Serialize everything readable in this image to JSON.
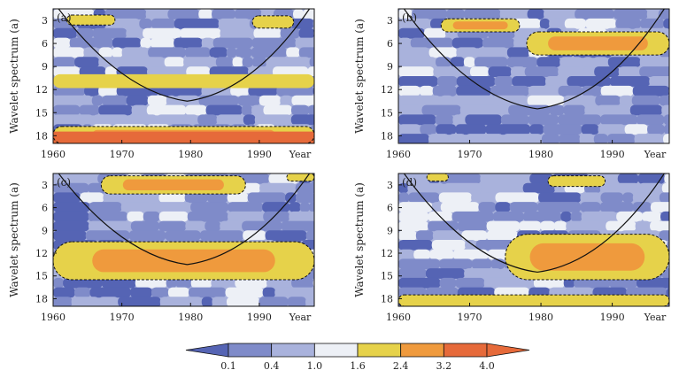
{
  "chart_data": {
    "type": "heatmap",
    "panels": [
      {
        "label": "(a)",
        "ylabel": "Wavelet spectrum (a)",
        "xticks": [
          "1960",
          "1970",
          "1980",
          "1990",
          "Year"
        ],
        "yticks": [
          "3",
          "6",
          "9",
          "12",
          "15",
          "18"
        ],
        "xlim": [
          1960,
          1998
        ],
        "ylim_period": [
          1.5,
          19
        ],
        "cone_min": [
          1979.5,
          13.5
        ],
        "high_regions": [
          {
            "x": [
              1962,
              1969
            ],
            "y": [
              2.3,
              3.6
            ],
            "level": 2.4,
            "significant": true
          },
          {
            "x": [
              1989,
              1995
            ],
            "y": [
              2.4,
              4.0
            ],
            "level": 2.4,
            "significant": true
          },
          {
            "x": [
              1960,
              1998
            ],
            "y": [
              16.8,
              19
            ],
            "level": 4.0,
            "significant": true
          },
          {
            "x": [
              1960,
              1998
            ],
            "y": [
              10.0,
              11.8
            ],
            "level": 2.4,
            "significant": false
          }
        ]
      },
      {
        "label": "(b)",
        "ylabel": "Wavelet spectrum (a)",
        "xticks": [
          "1960",
          "1970",
          "1980",
          "1990",
          "Year"
        ],
        "yticks": [
          "3",
          "6",
          "9",
          "12",
          "15",
          "18"
        ],
        "xlim": [
          1960,
          1998
        ],
        "ylim_period": [
          1.5,
          19
        ],
        "cone_min": [
          1979.5,
          14.5
        ],
        "high_regions": [
          {
            "x": [
              1966,
              1977
            ],
            "y": [
              2.8,
              4.5
            ],
            "level": 3.2,
            "significant": true
          },
          {
            "x": [
              1978,
              1998
            ],
            "y": [
              4.5,
              7.5
            ],
            "level": 3.2,
            "significant": true
          }
        ]
      },
      {
        "label": "(c)",
        "ylabel": "Wavelet spectrum (a)",
        "xticks": [
          "1960",
          "1970",
          "1980",
          "1990",
          "Year"
        ],
        "yticks": [
          "3",
          "6",
          "9",
          "12",
          "15",
          "18"
        ],
        "xlim": [
          1960,
          1998
        ],
        "ylim_period": [
          1.5,
          19
        ],
        "cone_min": [
          1979.5,
          13.5
        ],
        "high_regions": [
          {
            "x": [
              1967,
              1988
            ],
            "y": [
              1.8,
              4.2
            ],
            "level": 3.2,
            "significant": true
          },
          {
            "x": [
              1994,
              1998
            ],
            "y": [
              1.5,
              2.5
            ],
            "level": 2.4,
            "significant": true
          },
          {
            "x": [
              1960,
              1998
            ],
            "y": [
              10.5,
              15.5
            ],
            "level": 3.2,
            "significant": true
          }
        ]
      },
      {
        "label": "(d)",
        "ylabel": "Wavelet spectrum (a)",
        "xticks": [
          "1960",
          "1970",
          "1980",
          "1990",
          "Year"
        ],
        "yticks": [
          "3",
          "6",
          "9",
          "12",
          "15",
          "18"
        ],
        "xlim": [
          1960,
          1998
        ],
        "ylim_period": [
          1.5,
          19
        ],
        "cone_min": [
          1979.5,
          14.5
        ],
        "high_regions": [
          {
            "x": [
              1964,
              1967
            ],
            "y": [
              1.5,
              2.5
            ],
            "level": 2.4,
            "significant": true
          },
          {
            "x": [
              1981,
              1989
            ],
            "y": [
              1.8,
              3.2
            ],
            "level": 2.4,
            "significant": true
          },
          {
            "x": [
              1975,
              1998
            ],
            "y": [
              9.5,
              15.5
            ],
            "level": 3.2,
            "significant": true
          },
          {
            "x": [
              1960,
              1998
            ],
            "y": [
              17.5,
              19
            ],
            "level": 2.4,
            "significant": true
          }
        ]
      }
    ],
    "colorbar": {
      "levels": [
        "0.1",
        "0.4",
        "1.0",
        "1.6",
        "2.4",
        "3.2",
        "4.0"
      ],
      "colors": [
        "#5564b4",
        "#7f8bc9",
        "#a9b2dc",
        "#edf0f6",
        "#e6d24a",
        "#ef9a3d",
        "#e66a3a"
      ]
    }
  }
}
